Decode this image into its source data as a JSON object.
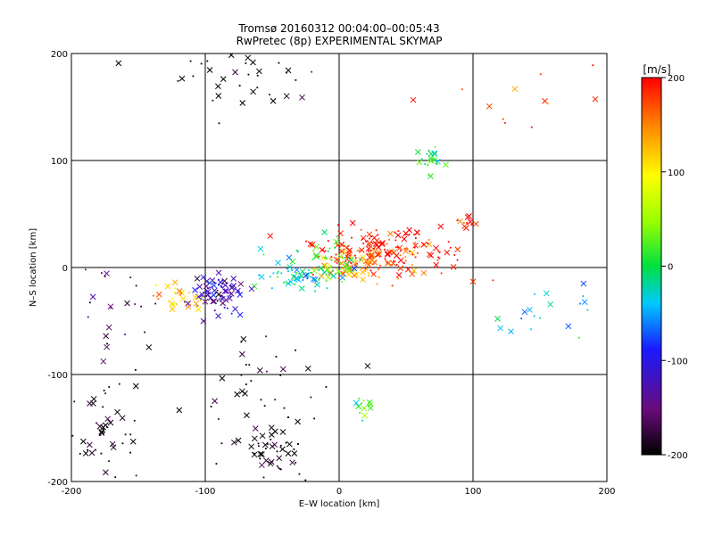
{
  "chart_data": {
    "type": "scatter",
    "title": "Tromsø 20160312 00:04:00–00:05:43",
    "subtitle": "RwPretec (8p) EXPERIMENTAL SKYMAP",
    "xlabel": "E–W location [km]",
    "ylabel": "N–S location [km]",
    "xlim": [
      -200,
      200
    ],
    "ylim": [
      -200,
      200
    ],
    "xticks": [
      -200,
      -100,
      0,
      100,
      200
    ],
    "yticks": [
      -200,
      -100,
      0,
      100,
      200
    ],
    "grid": true,
    "colorbar": {
      "label": "[m/s]",
      "min": -200,
      "max": 200,
      "ticks": [
        200,
        100,
        0,
        -100,
        -200
      ],
      "colorscale": "rainbow: black-purple-blue-cyan-green-yellow-orange-red"
    },
    "markers": [
      "cross",
      "dot"
    ],
    "point_clusters": [
      {
        "center": [
          25,
          18
        ],
        "spread": [
          22,
          10
        ],
        "count": 110,
        "velocity": 195
      },
      {
        "center": [
          55,
          12
        ],
        "spread": [
          22,
          12
        ],
        "count": 60,
        "velocity": 190
      },
      {
        "center": [
          95,
          40
        ],
        "spread": [
          4,
          3
        ],
        "count": 12,
        "velocity": 195
      },
      {
        "center": [
          10,
          0
        ],
        "spread": [
          14,
          8
        ],
        "count": 70,
        "velocity": 140
      },
      {
        "center": [
          -10,
          5
        ],
        "spread": [
          14,
          10
        ],
        "count": 60,
        "velocity": 20
      },
      {
        "center": [
          -35,
          -8
        ],
        "spread": [
          18,
          10
        ],
        "count": 45,
        "velocity": -30
      },
      {
        "center": [
          -90,
          -22
        ],
        "spread": [
          12,
          8
        ],
        "count": 80,
        "velocity": -120
      },
      {
        "center": [
          -120,
          -28
        ],
        "spread": [
          10,
          6
        ],
        "count": 30,
        "velocity": 120
      },
      {
        "center": [
          70,
          100
        ],
        "spread": [
          5,
          6
        ],
        "count": 22,
        "velocity": 10
      },
      {
        "center": [
          18,
          -130
        ],
        "spread": [
          5,
          4
        ],
        "count": 14,
        "velocity": 20
      },
      {
        "center": [
          -50,
          -170
        ],
        "spread": [
          12,
          18
        ],
        "count": 50,
        "velocity": -200
      },
      {
        "center": [
          -175,
          -160
        ],
        "spread": [
          14,
          30
        ],
        "count": 55,
        "velocity": -195
      },
      {
        "center": [
          -65,
          180
        ],
        "spread": [
          30,
          12
        ],
        "count": 35,
        "velocity": -200
      },
      {
        "center": [
          -60,
          -110
        ],
        "spread": [
          25,
          25
        ],
        "count": 35,
        "velocity": -200
      },
      {
        "center": [
          155,
          -45
        ],
        "spread": [
          25,
          15
        ],
        "count": 20,
        "velocity": -40
      },
      {
        "center": [
          -160,
          -40
        ],
        "spread": [
          25,
          30
        ],
        "count": 25,
        "velocity": -170
      },
      {
        "center": [
          145,
          155
        ],
        "spread": [
          35,
          30
        ],
        "count": 12,
        "velocity": 180
      }
    ]
  }
}
